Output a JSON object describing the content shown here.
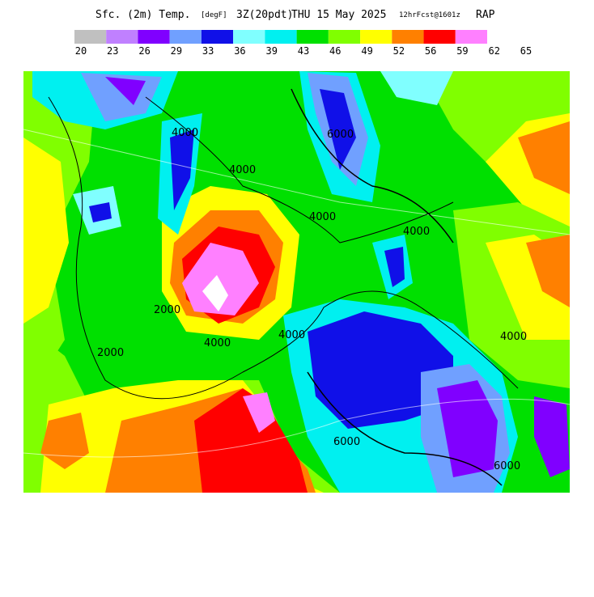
{
  "header": {
    "title": "Sfc. (2m) Temp.",
    "units": "[degF]",
    "valid": "3Z(20pdt)",
    "date": "THU 15 May 2025",
    "forecast": "12hrFcst@1601z",
    "model": "RAP"
  },
  "legend": {
    "colors": [
      "#c0c0c0",
      "#c080ff",
      "#8000ff",
      "#70a0ff",
      "#1010e8",
      "#80ffff",
      "#00f0f0",
      "#00e000",
      "#80ff00",
      "#ffff00",
      "#ff8000",
      "#ff0000",
      "#ff80ff"
    ],
    "labels": [
      20,
      23,
      26,
      29,
      33,
      36,
      39,
      43,
      46,
      49,
      52,
      56,
      59,
      62,
      65
    ]
  },
  "contour_labels": [
    "4000",
    "4000",
    "2000",
    "2000",
    "4000",
    "4000",
    "6000",
    "4000",
    "4000",
    "6000",
    "4000",
    "6000"
  ]
}
